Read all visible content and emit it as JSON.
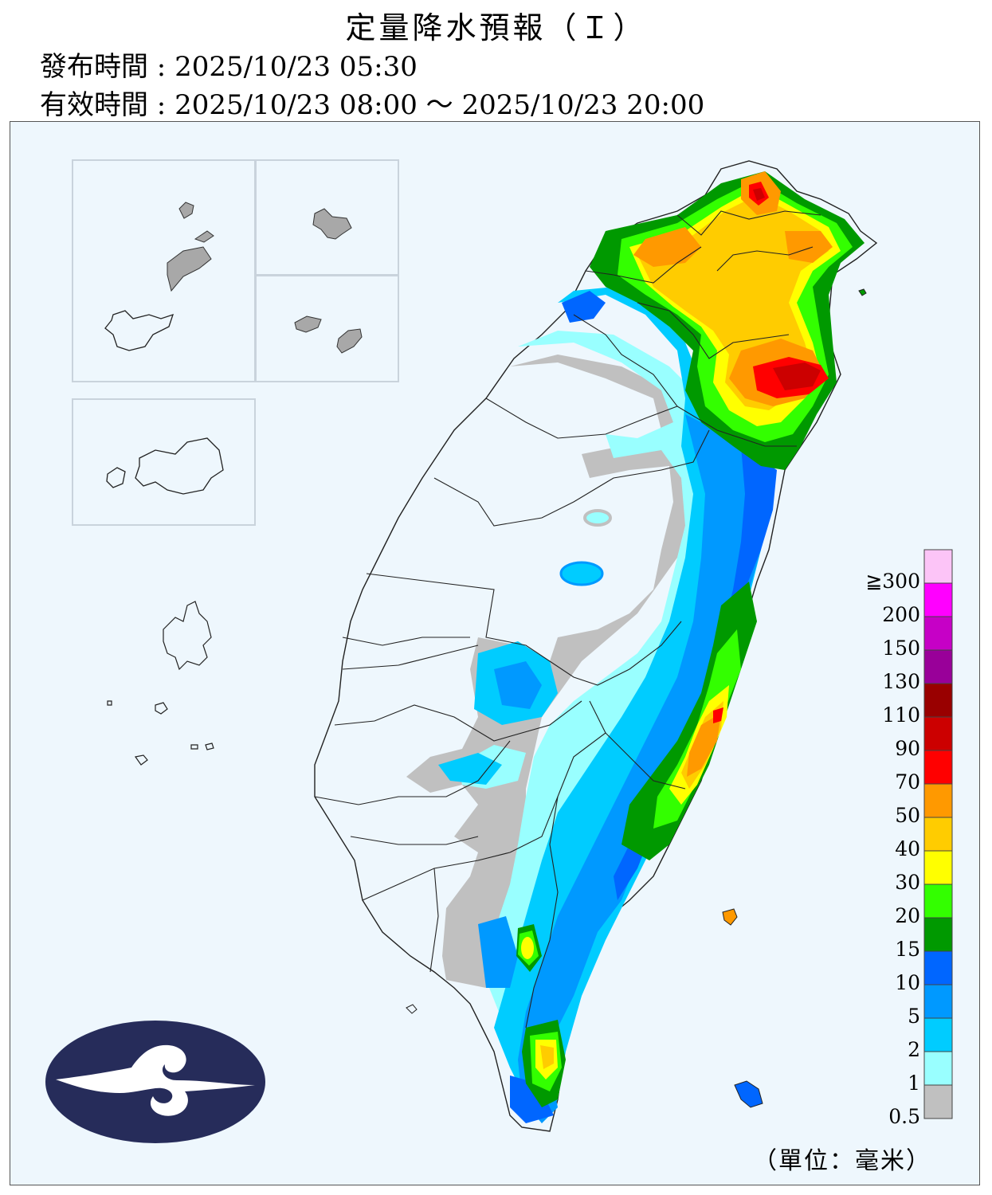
{
  "title": "定量降水預報（Ｉ）",
  "issued_label": "發布時間",
  "issued_time": "2025/10/23 05:30",
  "valid_label": "有效時間",
  "valid_time": "2025/10/23 08:00 ～ 2025/10/23 20:00",
  "legend": {
    "unit": "（單位：毫米）",
    "levels": [
      {
        "label": "≧300",
        "color": "#fcc4f7"
      },
      {
        "label": "200",
        "color": "#ff00ff"
      },
      {
        "label": "150",
        "color": "#c600c6"
      },
      {
        "label": "130",
        "color": "#990099"
      },
      {
        "label": "110",
        "color": "#990000"
      },
      {
        "label": "90",
        "color": "#cc0000"
      },
      {
        "label": "70",
        "color": "#ff0000"
      },
      {
        "label": "50",
        "color": "#ff9900"
      },
      {
        "label": "40",
        "color": "#ffcc00"
      },
      {
        "label": "30",
        "color": "#ffff00"
      },
      {
        "label": "20",
        "color": "#33ff00"
      },
      {
        "label": "15",
        "color": "#009900"
      },
      {
        "label": "10",
        "color": "#0066ff"
      },
      {
        "label": "5",
        "color": "#0099ff"
      },
      {
        "label": "2",
        "color": "#00ccff"
      },
      {
        "label": "1",
        "color": "#99ffff"
      },
      {
        "label": "0.5",
        "color": "#c0c0c0"
      }
    ]
  },
  "colors": {
    "sea": "#eef7fd",
    "land_dry": "#eef7fd",
    "logo_bg": "#262c5a",
    "island_gray": "#a8a8a8"
  }
}
